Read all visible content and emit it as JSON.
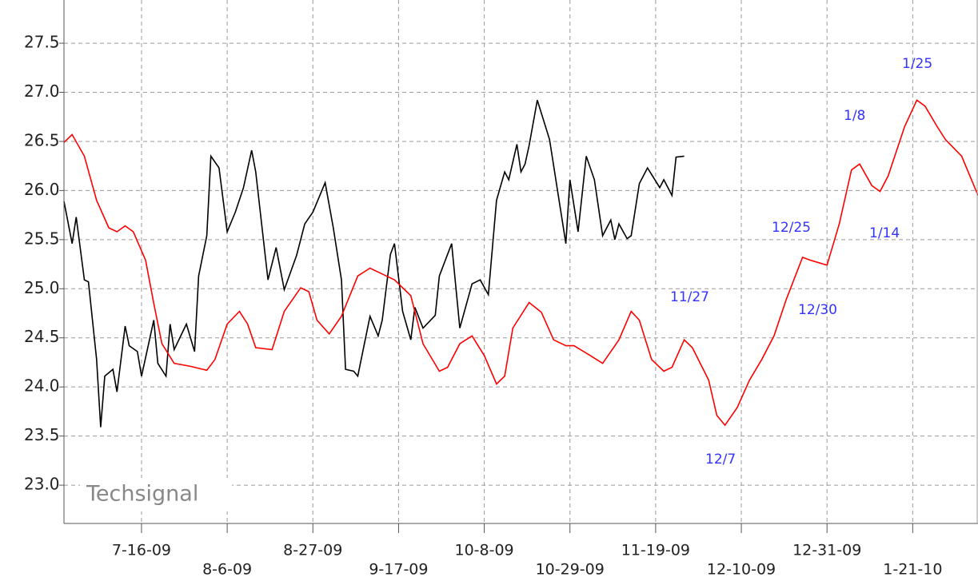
{
  "chart_data": {
    "type": "line",
    "watermark": "Techsignal",
    "xlim": [
      "2009-06-27",
      "2010-02-06"
    ],
    "ylim": [
      22.61,
      27.94
    ],
    "xticks": [
      {
        "value": "2009-07-16",
        "label": "7-16-09"
      },
      {
        "value": "2009-08-06",
        "label": "8-6-09"
      },
      {
        "value": "2009-08-27",
        "label": "8-27-09"
      },
      {
        "value": "2009-09-17",
        "label": "9-17-09"
      },
      {
        "value": "2009-10-08",
        "label": "10-8-09"
      },
      {
        "value": "2009-10-29",
        "label": "10-29-09"
      },
      {
        "value": "2009-11-19",
        "label": "11-19-09"
      },
      {
        "value": "2009-12-10",
        "label": "12-10-09"
      },
      {
        "value": "2009-12-31",
        "label": "12-31-09"
      },
      {
        "value": "2010-01-21",
        "label": "1-21-10"
      }
    ],
    "yticks": [
      {
        "value": 23,
        "label": "23.0"
      },
      23.5,
      {
        "value": 24,
        "label": "24.0"
      },
      24.5,
      {
        "value": 25,
        "label": "25.0"
      },
      25.5,
      {
        "value": 26,
        "label": "26.0"
      },
      26.5,
      {
        "value": 27,
        "label": "27.0"
      },
      27.5
    ],
    "grid": true,
    "annotations": [
      "11/27",
      "12/7",
      "12/25",
      "12/30",
      "1/8",
      "1/14",
      "1/25"
    ],
    "series": [
      {
        "color": "#000000",
        "x": [
          "2009-06-27",
          "2009-06-29",
          "2009-06-30",
          "2009-07-02",
          "2009-07-03",
          "2009-07-05",
          "2009-07-06",
          "2009-07-07",
          "2009-07-09",
          "2009-07-10",
          "2009-07-12",
          "2009-07-13",
          "2009-07-15",
          "2009-07-16",
          "2009-07-19",
          "2009-07-20",
          "2009-07-22",
          "2009-07-23",
          "2009-07-24",
          "2009-07-27",
          "2009-07-29",
          "2009-07-30",
          "2009-08-01",
          "2009-08-02",
          "2009-08-04",
          "2009-08-06",
          "2009-08-08",
          "2009-08-10",
          "2009-08-12",
          "2009-08-13",
          "2009-08-16",
          "2009-08-18",
          "2009-08-20",
          "2009-08-23",
          "2009-08-25",
          "2009-08-27",
          "2009-08-30",
          "2009-09-01",
          "2009-09-03",
          "2009-09-04",
          "2009-09-06",
          "2009-09-07",
          "2009-09-10",
          "2009-09-12",
          "2009-09-13",
          "2009-09-15",
          "2009-09-16",
          "2009-09-18",
          "2009-09-20",
          "2009-09-21",
          "2009-09-23",
          "2009-09-26",
          "2009-09-27",
          "2009-09-30",
          "2009-10-02",
          "2009-10-05",
          "2009-10-07",
          "2009-10-09",
          "2009-10-11",
          "2009-10-13",
          "2009-10-14",
          "2009-10-16",
          "2009-10-17",
          "2009-10-18",
          "2009-10-19",
          "2009-10-21",
          "2009-10-24",
          "2009-10-26",
          "2009-10-28",
          "2009-10-29",
          "2009-10-31",
          "2009-11-02",
          "2009-11-04",
          "2009-11-06",
          "2009-11-08",
          "2009-11-09",
          "2009-11-10",
          "2009-11-12",
          "2009-11-13",
          "2009-11-15",
          "2009-11-17",
          "2009-11-20",
          "2009-11-21",
          "2009-11-23",
          "2009-11-24",
          "2009-11-26"
        ],
        "values": [
          25.89,
          25.46,
          25.73,
          25.09,
          25.07,
          24.28,
          23.59,
          24.11,
          24.18,
          23.95,
          24.62,
          24.42,
          24.36,
          24.11,
          24.68,
          24.24,
          24.11,
          24.64,
          24.38,
          24.64,
          24.36,
          25.13,
          25.54,
          26.35,
          26.23,
          25.58,
          25.78,
          26.03,
          26.41,
          26.19,
          25.09,
          25.42,
          24.99,
          25.34,
          25.66,
          25.78,
          26.08,
          25.62,
          25.09,
          24.18,
          24.16,
          24.11,
          24.72,
          24.52,
          24.68,
          25.35,
          25.46,
          24.77,
          24.48,
          24.81,
          24.6,
          24.73,
          25.13,
          25.46,
          24.6,
          25.05,
          25.09,
          24.94,
          25.9,
          26.19,
          26.11,
          26.47,
          26.19,
          26.27,
          26.46,
          26.92,
          26.52,
          25.99,
          25.46,
          26.11,
          25.58,
          26.35,
          26.11,
          25.54,
          25.7,
          25.5,
          25.66,
          25.51,
          25.54,
          26.07,
          26.23,
          26.03,
          26.11,
          25.95,
          26.34,
          26.35
        ]
      },
      {
        "color": "#ff0000",
        "x": [
          "2009-06-27",
          "2009-06-29",
          "2009-07-02",
          "2009-07-05",
          "2009-07-08",
          "2009-07-10",
          "2009-07-12",
          "2009-07-14",
          "2009-07-17",
          "2009-07-19",
          "2009-07-21",
          "2009-07-24",
          "2009-07-28",
          "2009-08-01",
          "2009-08-03",
          "2009-08-06",
          "2009-08-09",
          "2009-08-11",
          "2009-08-13",
          "2009-08-17",
          "2009-08-20",
          "2009-08-24",
          "2009-08-26",
          "2009-08-28",
          "2009-08-31",
          "2009-09-03",
          "2009-09-07",
          "2009-09-10",
          "2009-09-14",
          "2009-09-16",
          "2009-09-20",
          "2009-09-23",
          "2009-09-27",
          "2009-09-29",
          "2009-10-02",
          "2009-10-05",
          "2009-10-08",
          "2009-10-11",
          "2009-10-13",
          "2009-10-15",
          "2009-10-19",
          "2009-10-22",
          "2009-10-25",
          "2009-10-28",
          "2009-10-30",
          "2009-11-03",
          "2009-11-06",
          "2009-11-10",
          "2009-11-13",
          "2009-11-15",
          "2009-11-18",
          "2009-11-21",
          "2009-11-23",
          "2009-11-26",
          "2009-11-28",
          "2009-12-02",
          "2009-12-04",
          "2009-12-06",
          "2009-12-09",
          "2009-12-12",
          "2009-12-15",
          "2009-12-18",
          "2009-12-21",
          "2009-12-25",
          "2009-12-27",
          "2009-12-31",
          "2010-01-03",
          "2010-01-06",
          "2010-01-08",
          "2010-01-11",
          "2010-01-13",
          "2010-01-15",
          "2010-01-19",
          "2010-01-22",
          "2010-01-24",
          "2010-01-27",
          "2010-01-29",
          "2010-02-02",
          "2010-02-06"
        ],
        "values": [
          26.49,
          26.57,
          26.35,
          25.9,
          25.62,
          25.58,
          25.64,
          25.58,
          25.29,
          24.85,
          24.44,
          24.24,
          24.21,
          24.17,
          24.28,
          24.64,
          24.77,
          24.64,
          24.4,
          24.38,
          24.77,
          25.01,
          24.97,
          24.68,
          24.54,
          24.72,
          25.13,
          25.21,
          25.13,
          25.09,
          24.93,
          24.44,
          24.16,
          24.2,
          24.44,
          24.52,
          24.32,
          24.03,
          24.11,
          24.6,
          24.86,
          24.76,
          24.48,
          24.42,
          24.42,
          24.32,
          24.24,
          24.48,
          24.77,
          24.68,
          24.28,
          24.16,
          24.2,
          24.48,
          24.4,
          24.07,
          23.71,
          23.61,
          23.79,
          24.07,
          24.28,
          24.52,
          24.89,
          25.32,
          25.29,
          25.24,
          25.66,
          26.21,
          26.27,
          26.05,
          25.99,
          26.15,
          26.65,
          26.92,
          26.86,
          26.65,
          26.52,
          26.35,
          25.95
        ]
      }
    ]
  }
}
